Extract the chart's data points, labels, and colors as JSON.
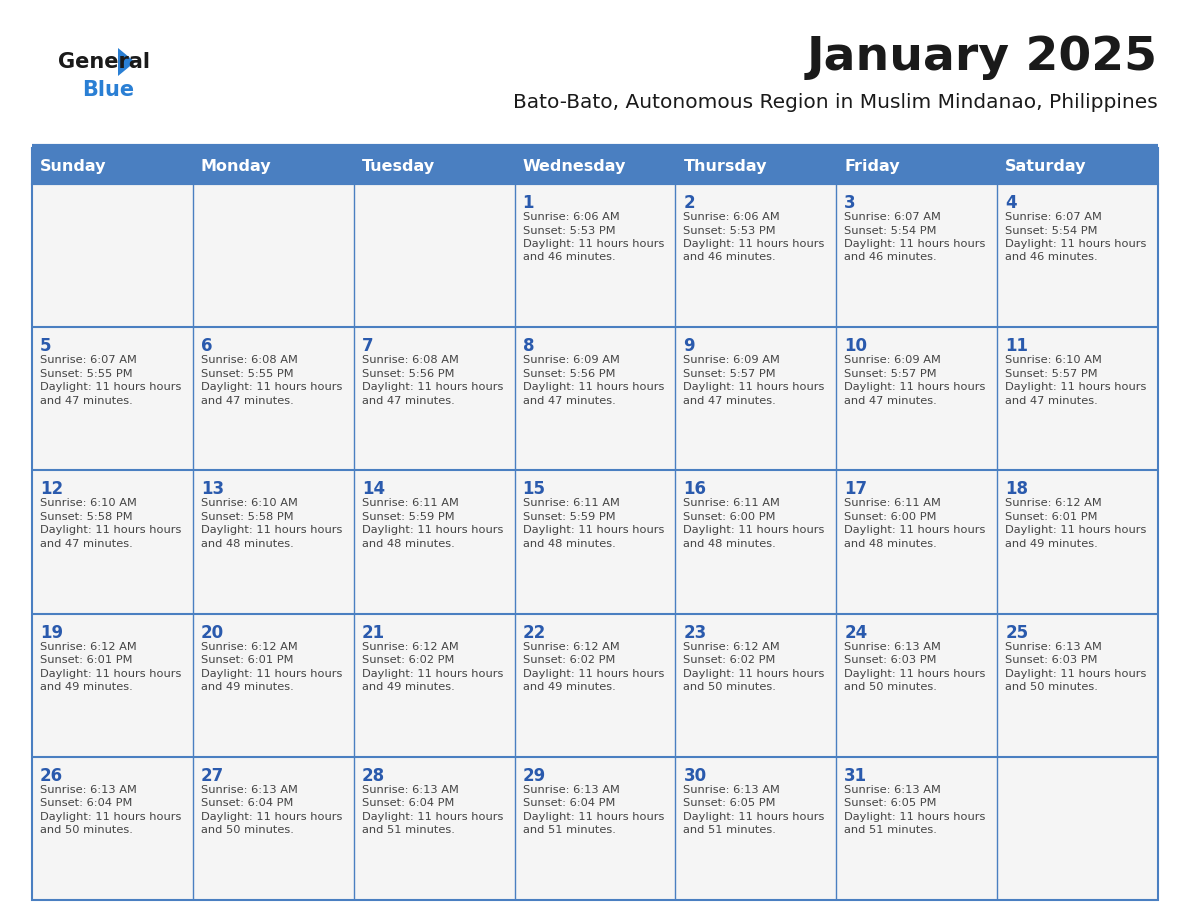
{
  "title": "January 2025",
  "subtitle": "Bato-Bato, Autonomous Region in Muslim Mindanao, Philippines",
  "days_of_week": [
    "Sunday",
    "Monday",
    "Tuesday",
    "Wednesday",
    "Thursday",
    "Friday",
    "Saturday"
  ],
  "header_bg": "#4a7fc1",
  "header_text": "#ffffff",
  "cell_bg": "#f5f5f5",
  "day_number_color": "#2a5aad",
  "data_text_color": "#444444",
  "border_color": "#4a7fc1",
  "title_color": "#1a1a1a",
  "subtitle_color": "#1a1a1a",
  "calendar": [
    [
      {
        "day": null,
        "sunrise": null,
        "sunset": null,
        "daylight": null
      },
      {
        "day": null,
        "sunrise": null,
        "sunset": null,
        "daylight": null
      },
      {
        "day": null,
        "sunrise": null,
        "sunset": null,
        "daylight": null
      },
      {
        "day": 1,
        "sunrise": "6:06 AM",
        "sunset": "5:53 PM",
        "daylight": "11 hours and 46 minutes."
      },
      {
        "day": 2,
        "sunrise": "6:06 AM",
        "sunset": "5:53 PM",
        "daylight": "11 hours and 46 minutes."
      },
      {
        "day": 3,
        "sunrise": "6:07 AM",
        "sunset": "5:54 PM",
        "daylight": "11 hours and 46 minutes."
      },
      {
        "day": 4,
        "sunrise": "6:07 AM",
        "sunset": "5:54 PM",
        "daylight": "11 hours and 46 minutes."
      }
    ],
    [
      {
        "day": 5,
        "sunrise": "6:07 AM",
        "sunset": "5:55 PM",
        "daylight": "11 hours and 47 minutes."
      },
      {
        "day": 6,
        "sunrise": "6:08 AM",
        "sunset": "5:55 PM",
        "daylight": "11 hours and 47 minutes."
      },
      {
        "day": 7,
        "sunrise": "6:08 AM",
        "sunset": "5:56 PM",
        "daylight": "11 hours and 47 minutes."
      },
      {
        "day": 8,
        "sunrise": "6:09 AM",
        "sunset": "5:56 PM",
        "daylight": "11 hours and 47 minutes."
      },
      {
        "day": 9,
        "sunrise": "6:09 AM",
        "sunset": "5:57 PM",
        "daylight": "11 hours and 47 minutes."
      },
      {
        "day": 10,
        "sunrise": "6:09 AM",
        "sunset": "5:57 PM",
        "daylight": "11 hours and 47 minutes."
      },
      {
        "day": 11,
        "sunrise": "6:10 AM",
        "sunset": "5:57 PM",
        "daylight": "11 hours and 47 minutes."
      }
    ],
    [
      {
        "day": 12,
        "sunrise": "6:10 AM",
        "sunset": "5:58 PM",
        "daylight": "11 hours and 47 minutes."
      },
      {
        "day": 13,
        "sunrise": "6:10 AM",
        "sunset": "5:58 PM",
        "daylight": "11 hours and 48 minutes."
      },
      {
        "day": 14,
        "sunrise": "6:11 AM",
        "sunset": "5:59 PM",
        "daylight": "11 hours and 48 minutes."
      },
      {
        "day": 15,
        "sunrise": "6:11 AM",
        "sunset": "5:59 PM",
        "daylight": "11 hours and 48 minutes."
      },
      {
        "day": 16,
        "sunrise": "6:11 AM",
        "sunset": "6:00 PM",
        "daylight": "11 hours and 48 minutes."
      },
      {
        "day": 17,
        "sunrise": "6:11 AM",
        "sunset": "6:00 PM",
        "daylight": "11 hours and 48 minutes."
      },
      {
        "day": 18,
        "sunrise": "6:12 AM",
        "sunset": "6:01 PM",
        "daylight": "11 hours and 49 minutes."
      }
    ],
    [
      {
        "day": 19,
        "sunrise": "6:12 AM",
        "sunset": "6:01 PM",
        "daylight": "11 hours and 49 minutes."
      },
      {
        "day": 20,
        "sunrise": "6:12 AM",
        "sunset": "6:01 PM",
        "daylight": "11 hours and 49 minutes."
      },
      {
        "day": 21,
        "sunrise": "6:12 AM",
        "sunset": "6:02 PM",
        "daylight": "11 hours and 49 minutes."
      },
      {
        "day": 22,
        "sunrise": "6:12 AM",
        "sunset": "6:02 PM",
        "daylight": "11 hours and 49 minutes."
      },
      {
        "day": 23,
        "sunrise": "6:12 AM",
        "sunset": "6:02 PM",
        "daylight": "11 hours and 50 minutes."
      },
      {
        "day": 24,
        "sunrise": "6:13 AM",
        "sunset": "6:03 PM",
        "daylight": "11 hours and 50 minutes."
      },
      {
        "day": 25,
        "sunrise": "6:13 AM",
        "sunset": "6:03 PM",
        "daylight": "11 hours and 50 minutes."
      }
    ],
    [
      {
        "day": 26,
        "sunrise": "6:13 AM",
        "sunset": "6:04 PM",
        "daylight": "11 hours and 50 minutes."
      },
      {
        "day": 27,
        "sunrise": "6:13 AM",
        "sunset": "6:04 PM",
        "daylight": "11 hours and 50 minutes."
      },
      {
        "day": 28,
        "sunrise": "6:13 AM",
        "sunset": "6:04 PM",
        "daylight": "11 hours and 51 minutes."
      },
      {
        "day": 29,
        "sunrise": "6:13 AM",
        "sunset": "6:04 PM",
        "daylight": "11 hours and 51 minutes."
      },
      {
        "day": 30,
        "sunrise": "6:13 AM",
        "sunset": "6:05 PM",
        "daylight": "11 hours and 51 minutes."
      },
      {
        "day": 31,
        "sunrise": "6:13 AM",
        "sunset": "6:05 PM",
        "daylight": "11 hours and 51 minutes."
      },
      {
        "day": null,
        "sunrise": null,
        "sunset": null,
        "daylight": null
      }
    ]
  ],
  "logo_color_general": "#1a1a1a",
  "logo_color_blue": "#2a7fd4",
  "logo_triangle_color": "#2a7fd4"
}
